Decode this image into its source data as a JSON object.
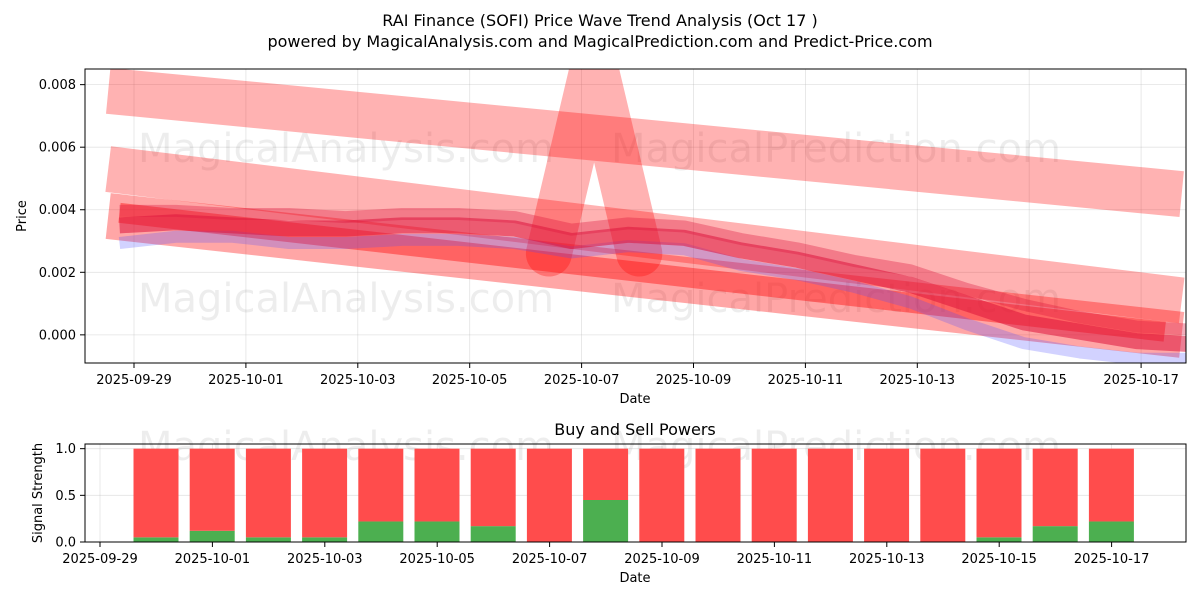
{
  "chart_data": [
    {
      "type": "line",
      "title": "RAI Finance (SOFI) Price Wave Trend Analysis (Oct 17 )",
      "subtitle": "powered by MagicalAnalysis.com and MagicalPrediction.com and Predict-Price.com",
      "xlabel": "Date",
      "ylabel": "Price",
      "ylim": [
        -0.0009,
        0.0085
      ],
      "yticks": [
        0.0,
        0.002,
        0.004,
        0.006,
        0.008
      ],
      "ytick_labels": [
        "0.000",
        "0.002",
        "0.004",
        "0.006",
        "0.008"
      ],
      "xtick_labels": [
        "2025-09-29",
        "2025-10-01",
        "2025-10-03",
        "2025-10-05",
        "2025-10-07",
        "2025-10-09",
        "2025-10-11",
        "2025-10-13",
        "2025-10-15",
        "2025-10-17"
      ],
      "grid": true,
      "x": [
        0,
        1,
        2,
        3,
        4,
        5,
        6,
        7,
        8,
        9,
        10,
        11,
        12,
        13,
        14,
        15,
        16,
        17,
        18,
        19
      ],
      "series": [
        {
          "name": "price-wave-center",
          "values": [
            0.0035,
            0.0036,
            0.0035,
            0.0034,
            0.0034,
            0.0035,
            0.0035,
            0.0034,
            0.003,
            0.0032,
            0.0031,
            0.0027,
            0.0024,
            0.002,
            0.0016,
            0.001,
            0.0004,
            0.0001,
            -0.0002,
            -0.0003
          ]
        },
        {
          "name": "price-wave-upper",
          "values": [
            0.0039,
            0.0039,
            0.0038,
            0.0038,
            0.0037,
            0.0038,
            0.0038,
            0.0037,
            0.0033,
            0.0035,
            0.0034,
            0.003,
            0.0027,
            0.0023,
            0.002,
            0.0014,
            0.0009,
            0.0005,
            0.0002,
            0.0001
          ]
        },
        {
          "name": "price-wave-lower",
          "values": [
            0.003,
            0.0032,
            0.0032,
            0.003,
            0.003,
            0.0031,
            0.0031,
            0.003,
            0.0027,
            0.0029,
            0.0028,
            0.0023,
            0.002,
            0.0016,
            0.0011,
            0.0004,
            -0.0002,
            -0.0005,
            -0.0007,
            -0.0007
          ]
        }
      ],
      "trend_bands": [
        {
          "name": "upper-trend-band",
          "x_start": -0.2,
          "y_start": 0.0078,
          "x_end": 18.8,
          "y_end": 0.0045
        },
        {
          "name": "middle-trend-band",
          "x_start": -0.2,
          "y_start": 0.0053,
          "x_end": 18.8,
          "y_end": 0.0011
        },
        {
          "name": "lower-trend-band",
          "x_start": -0.2,
          "y_start": 0.0038,
          "x_end": 18.8,
          "y_end": 0.0
        },
        {
          "name": "inner-trend-band",
          "x_start": 0.0,
          "y_start": 0.0039,
          "x_end": 18.5,
          "y_end": 0.0001
        }
      ],
      "spike": {
        "name": "forecast-spike",
        "x_peak": 8.4,
        "y_peak": 0.0087,
        "x_left": 7.6,
        "x_right": 9.2,
        "y_base": 0.0026
      },
      "watermarks": [
        "MagicalAnalysis.com",
        "MagicalPrediction.com",
        "MagicalAnalysis.com",
        "MagicalPrediction.com"
      ],
      "colors": {
        "band": "#ff0000",
        "wave": "#dc143c",
        "wave_alt": "#4b4bff",
        "grid": "#b0b0b0"
      }
    },
    {
      "type": "bar",
      "title": "Buy and Sell Powers",
      "xlabel": "Date",
      "ylabel": "Signal Strength",
      "ylim": [
        0,
        1.05
      ],
      "yticks": [
        0.0,
        0.5,
        1.0
      ],
      "ytick_labels": [
        "0.0",
        "0.5",
        "1.0"
      ],
      "xtick_labels": [
        "2025-09-29",
        "2025-10-01",
        "2025-10-03",
        "2025-10-05",
        "2025-10-07",
        "2025-10-09",
        "2025-10-11",
        "2025-10-13",
        "2025-10-15",
        "2025-10-17"
      ],
      "xlim": [
        -0.5,
        19.5
      ],
      "categories": [
        "2025-09-30",
        "2025-10-01",
        "2025-10-02",
        "2025-10-03",
        "2025-10-04",
        "2025-10-05",
        "2025-10-06",
        "2025-10-07",
        "2025-10-08",
        "2025-10-09",
        "2025-10-10",
        "2025-10-11",
        "2025-10-12",
        "2025-10-13",
        "2025-10-14",
        "2025-10-15",
        "2025-10-16",
        "2025-10-17"
      ],
      "series": [
        {
          "name": "Buy",
          "color": "#4caf50",
          "values": [
            0.05,
            0.12,
            0.05,
            0.05,
            0.22,
            0.22,
            0.17,
            0.0,
            0.45,
            0.0,
            0.0,
            0.0,
            0.0,
            0.0,
            0.0,
            0.05,
            0.17,
            0.22
          ]
        },
        {
          "name": "Sell",
          "color": "#ff4c4c",
          "values": [
            0.95,
            0.88,
            0.95,
            0.95,
            0.78,
            0.78,
            0.83,
            1.0,
            0.55,
            1.0,
            1.0,
            1.0,
            1.0,
            1.0,
            1.0,
            0.95,
            0.83,
            0.78
          ]
        }
      ],
      "grid": true,
      "watermarks": [
        "MagicalAnalysis.com",
        "MagicalPrediction.com"
      ]
    }
  ]
}
